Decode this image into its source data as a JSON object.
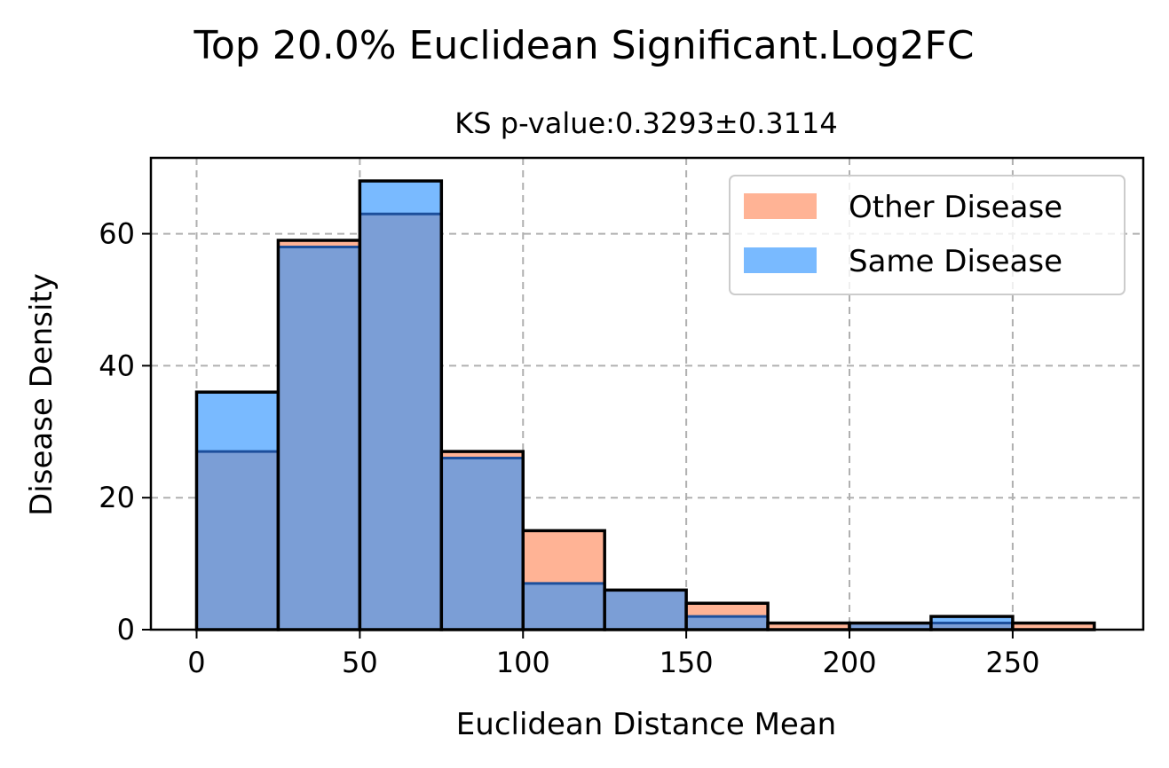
{
  "chart_data": {
    "type": "bar",
    "suptitle": "Top 20.0% Euclidean Significant.Log2FC",
    "title": "KS p-value:0.3293±0.3114",
    "xlabel": "Euclidean Distance Mean",
    "ylabel": "Disease Density",
    "bin_edges": [
      0,
      25,
      50,
      75,
      100,
      125,
      150,
      175,
      200,
      225,
      250,
      275
    ],
    "series": [
      {
        "name": "Other Disease",
        "color": "#FFB395",
        "values": [
          27,
          59,
          63,
          27,
          15,
          6,
          4,
          1,
          1,
          1,
          1
        ]
      },
      {
        "name": "Same Disease",
        "color": "#79BAFF",
        "values": [
          36,
          58,
          68,
          26,
          7,
          6,
          2,
          0,
          1,
          2,
          0
        ]
      }
    ],
    "overlap_color": "#7B9ED6",
    "xlim": [
      -14,
      290
    ],
    "ylim": [
      0,
      71.5
    ],
    "xticks": [
      0,
      50,
      100,
      150,
      200,
      250
    ],
    "yticks": [
      0,
      20,
      40,
      60
    ],
    "grid": true,
    "legend_position": "top-right"
  }
}
